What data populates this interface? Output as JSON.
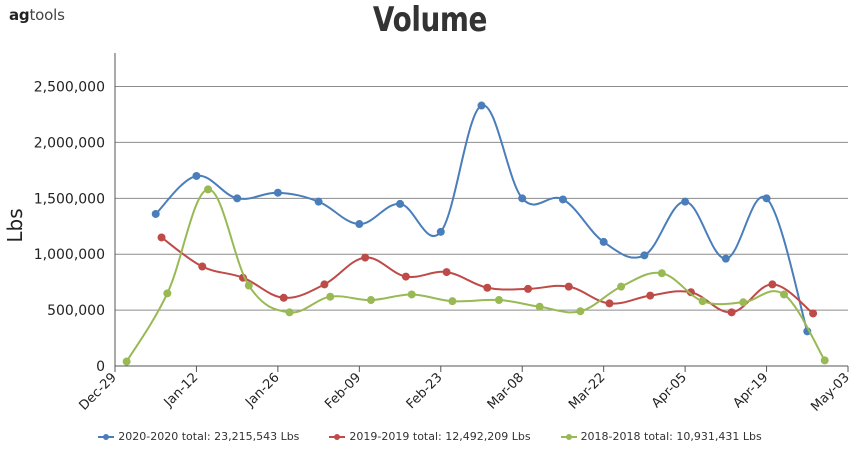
{
  "logo": {
    "ag": "ag",
    "tools": "tools"
  },
  "chart_data": {
    "type": "line",
    "title": "Volume",
    "xlabel": "",
    "ylabel": "Lbs",
    "ylim": [
      0,
      2800000
    ],
    "yticks": [
      "0",
      "500,000",
      "1,000,000",
      "1,500,000",
      "2,000,000",
      "2,500,000"
    ],
    "ytick_values": [
      0,
      500000,
      1000000,
      1500000,
      2000000,
      2500000
    ],
    "xlim": [
      "2019-12-29",
      "2020-05-03"
    ],
    "xticks": [
      "Dec-29",
      "Jan-12",
      "Jan-26",
      "Feb-09",
      "Feb-23",
      "Mar-08",
      "Mar-22",
      "Apr-05",
      "Apr-19",
      "May-03"
    ],
    "xtick_dates": [
      "2019-12-29",
      "2020-01-12",
      "2020-01-26",
      "2020-02-09",
      "2020-02-23",
      "2020-03-08",
      "2020-03-22",
      "2020-04-05",
      "2020-04-19",
      "2020-05-03"
    ],
    "grid": "horizontal",
    "legend": "bottom",
    "series": [
      {
        "name": "2020-2020 total: 23,215,543 Lbs",
        "color": "#4a7ebb",
        "x": [
          "2020-01-05",
          "2020-01-12",
          "2020-01-19",
          "2020-01-26",
          "2020-02-02",
          "2020-02-09",
          "2020-02-16",
          "2020-02-23",
          "2020-03-01",
          "2020-03-08",
          "2020-03-15",
          "2020-03-22",
          "2020-03-29",
          "2020-04-05",
          "2020-04-12",
          "2020-04-19",
          "2020-04-26"
        ],
        "values": [
          1360000,
          1700000,
          1500000,
          1550000,
          1470000,
          1270000,
          1450000,
          1200000,
          2330000,
          1500000,
          1490000,
          1110000,
          990000,
          1470000,
          960000,
          1500000,
          310000
        ]
      },
      {
        "name": "2019-2019 total: 12,492,209 Lbs",
        "color": "#be4b48",
        "x": [
          "2020-01-06",
          "2020-01-13",
          "2020-01-20",
          "2020-01-27",
          "2020-02-03",
          "2020-02-10",
          "2020-02-17",
          "2020-02-24",
          "2020-03-02",
          "2020-03-09",
          "2020-03-16",
          "2020-03-23",
          "2020-03-30",
          "2020-04-06",
          "2020-04-13",
          "2020-04-20",
          "2020-04-27"
        ],
        "values": [
          1150000,
          890000,
          790000,
          610000,
          730000,
          970000,
          800000,
          840000,
          700000,
          690000,
          710000,
          560000,
          630000,
          660000,
          480000,
          730000,
          470000
        ]
      },
      {
        "name": "2018-2018 total: 10,931,431 Lbs",
        "color": "#98b954",
        "x": [
          "2019-12-31",
          "2020-01-07",
          "2020-01-14",
          "2020-01-21",
          "2020-01-28",
          "2020-02-04",
          "2020-02-11",
          "2020-02-18",
          "2020-02-25",
          "2020-03-04",
          "2020-03-11",
          "2020-03-18",
          "2020-03-25",
          "2020-04-01",
          "2020-04-08",
          "2020-04-15",
          "2020-04-22",
          "2020-04-29"
        ],
        "values": [
          40000,
          650000,
          1580000,
          720000,
          480000,
          620000,
          590000,
          640000,
          580000,
          590000,
          530000,
          490000,
          710000,
          830000,
          580000,
          570000,
          640000,
          50000
        ]
      }
    ]
  }
}
